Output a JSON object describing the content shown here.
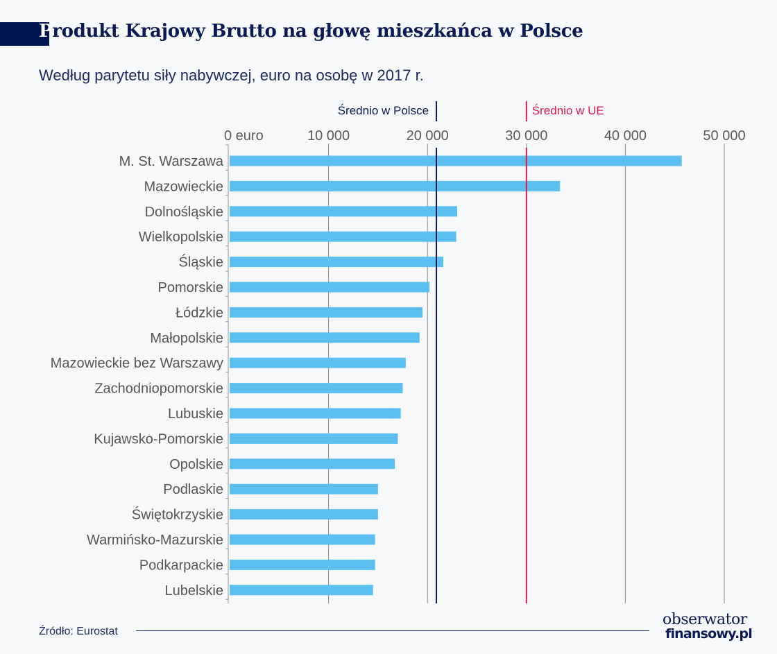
{
  "header": {
    "title_first_letter": "P",
    "title_rest": "rodukt Krajowy Brutto na głowę mieszkańca w Polsce",
    "subtitle": "Według parytetu siły nabywczej, euro na osobę w 2017 r."
  },
  "footer": {
    "source": "Źródło: Eurostat",
    "logo_line1": "obserwator",
    "logo_line2": "finansowy.pl"
  },
  "colors": {
    "bar": "#5bc0f0",
    "poland_line": "#0b1a55",
    "eu_line": "#e0184a",
    "grid": "#8a8a8a",
    "title": "#0b1a55"
  },
  "chart_data": {
    "type": "bar",
    "orientation": "horizontal",
    "title": "Produkt Krajowy Brutto na głowę mieszkańca w Polsce",
    "subtitle": "Według parytetu siły nabywczej, euro na osobę w 2017 r.",
    "xlabel": "",
    "ylabel": "",
    "xlim": [
      0,
      50000
    ],
    "grid": true,
    "x_ticks": [
      0,
      10000,
      20000,
      30000,
      40000,
      50000
    ],
    "x_tick_labels": [
      "0 euro",
      "10 000",
      "20 000",
      "30 000",
      "40 000",
      "50 000"
    ],
    "categories": [
      "M. St. Warszawa",
      "Mazowieckie",
      "Dolnośląskie",
      "Wielkopolskie",
      "Śląskie",
      "Pomorskie",
      "Łódzkie",
      "Małopolskie",
      "Mazowieckie bez Warszawy",
      "Zachodniopomorskie",
      "Lubuskie",
      "Kujawsko-Pomorskie",
      "Opolskie",
      "Podlaskie",
      "Świętokrzyskie",
      "Warmińsko-Mazurskie",
      "Podkarpackie",
      "Lubelskie"
    ],
    "values": [
      45700,
      33400,
      23000,
      22900,
      21600,
      20200,
      19500,
      19200,
      17800,
      17500,
      17300,
      17000,
      16700,
      15000,
      15000,
      14700,
      14700,
      14500
    ],
    "reference_lines": [
      {
        "label": "Średnio w Polsce",
        "value": 20900,
        "label_side": "left"
      },
      {
        "label": "Średnio w UE",
        "value": 30000,
        "label_side": "right"
      }
    ],
    "source": "Źródło: Eurostat"
  }
}
